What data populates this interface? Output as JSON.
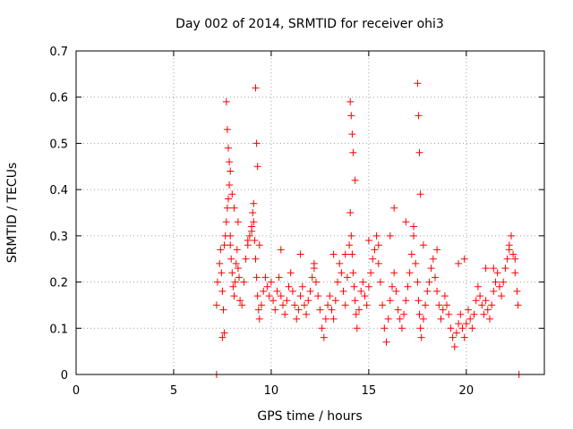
{
  "chart_data": {
    "type": "scatter",
    "title": "Day 002 of 2014, SRMTID for receiver ohi3",
    "xlabel": "GPS time / hours",
    "ylabel": "SRMTID / TECUs",
    "xlim": [
      0,
      24
    ],
    "ylim": [
      0,
      0.7
    ],
    "xticks": [
      0,
      5,
      10,
      15,
      20
    ],
    "yticks": [
      0,
      0.1,
      0.2,
      0.3,
      0.4,
      0.5,
      0.6,
      0.7
    ],
    "xtick_labels": [
      "0",
      "5",
      "10",
      "15",
      "20"
    ],
    "ytick_labels": [
      "0",
      "0.1",
      "0.2",
      "0.3",
      "0.4",
      "0.5",
      "0.6",
      "0.7"
    ],
    "grid": true,
    "marker": "+",
    "series": [
      {
        "name": "SRMTID",
        "color": "#ff0000",
        "x": [
          7.2,
          7.25,
          7.35,
          7.4,
          7.45,
          7.5,
          7.55,
          7.6,
          7.65,
          7.7,
          7.75,
          7.8,
          7.85,
          7.9,
          7.95,
          8.0,
          8.05,
          8.1,
          8.15,
          8.2,
          8.25,
          8.3,
          8.35,
          8.4,
          8.5,
          8.6,
          8.7,
          8.8,
          8.9,
          9.0,
          9.05,
          9.1,
          9.15,
          9.2,
          9.25,
          9.3,
          9.35,
          9.4,
          9.5,
          9.6,
          9.7,
          9.8,
          9.9,
          10.0,
          10.1,
          10.2,
          10.3,
          10.4,
          10.5,
          10.6,
          10.7,
          10.8,
          10.9,
          11.0,
          11.1,
          11.2,
          11.3,
          11.4,
          11.5,
          11.6,
          11.7,
          11.8,
          11.9,
          12.0,
          12.1,
          12.2,
          12.3,
          12.4,
          12.5,
          12.6,
          12.7,
          12.8,
          12.9,
          13.0,
          13.1,
          13.2,
          13.3,
          13.4,
          13.5,
          13.6,
          13.7,
          13.8,
          13.9,
          14.0,
          14.05,
          14.1,
          14.15,
          14.2,
          14.25,
          14.3,
          14.35,
          14.4,
          14.5,
          14.6,
          14.7,
          14.8,
          14.9,
          15.0,
          15.1,
          15.2,
          15.3,
          15.4,
          15.5,
          15.6,
          15.7,
          15.8,
          15.9,
          16.0,
          16.1,
          16.2,
          16.3,
          16.4,
          16.5,
          16.6,
          16.7,
          16.8,
          16.9,
          17.0,
          17.1,
          17.2,
          17.3,
          17.4,
          17.5,
          17.55,
          17.6,
          17.65,
          17.7,
          17.8,
          17.9,
          18.0,
          18.1,
          18.2,
          18.3,
          18.4,
          18.5,
          18.6,
          18.7,
          18.8,
          18.9,
          19.0,
          19.1,
          19.2,
          19.3,
          19.4,
          19.5,
          19.6,
          19.7,
          19.8,
          19.9,
          20.0,
          20.1,
          20.2,
          20.3,
          20.4,
          20.5,
          20.6,
          20.7,
          20.8,
          20.9,
          21.0,
          21.1,
          21.2,
          21.3,
          21.4,
          21.5,
          21.6,
          21.7,
          21.8,
          21.9,
          22.0,
          22.1,
          22.2,
          22.3,
          22.4,
          22.5,
          22.6,
          22.65,
          7.7,
          7.75,
          7.8,
          7.85,
          7.9,
          8.0,
          9.2,
          9.25,
          9.3,
          14.05,
          14.1,
          14.15,
          14.2,
          17.5,
          17.55,
          17.6,
          17.65,
          8.1,
          9.1,
          14.3,
          16.3,
          16.9,
          7.5,
          7.6,
          8.3,
          9.0,
          9.4,
          13.8,
          16.1,
          17.8,
          18.5,
          19.6,
          21.4,
          22.5,
          10.5,
          12.2,
          15.5,
          7.9,
          8.8,
          11.5,
          13.2,
          15.0,
          17.3,
          19.9,
          21.0,
          22.2,
          7.2,
          22.7
        ],
        "y": [
          0.15,
          0.2,
          0.24,
          0.27,
          0.22,
          0.18,
          0.14,
          0.09,
          0.3,
          0.33,
          0.36,
          0.38,
          0.41,
          0.28,
          0.25,
          0.22,
          0.19,
          0.17,
          0.2,
          0.24,
          0.27,
          0.23,
          0.21,
          0.16,
          0.15,
          0.2,
          0.25,
          0.28,
          0.3,
          0.32,
          0.35,
          0.33,
          0.29,
          0.25,
          0.21,
          0.17,
          0.14,
          0.12,
          0.15,
          0.18,
          0.21,
          0.19,
          0.17,
          0.2,
          0.16,
          0.14,
          0.18,
          0.21,
          0.17,
          0.15,
          0.13,
          0.16,
          0.19,
          0.22,
          0.18,
          0.15,
          0.12,
          0.14,
          0.17,
          0.19,
          0.15,
          0.13,
          0.16,
          0.18,
          0.21,
          0.23,
          0.2,
          0.17,
          0.14,
          0.1,
          0.08,
          0.12,
          0.15,
          0.17,
          0.14,
          0.12,
          0.16,
          0.2,
          0.24,
          0.22,
          0.18,
          0.15,
          0.21,
          0.28,
          0.35,
          0.3,
          0.26,
          0.22,
          0.19,
          0.16,
          0.13,
          0.1,
          0.14,
          0.18,
          0.2,
          0.17,
          0.15,
          0.19,
          0.22,
          0.25,
          0.27,
          0.3,
          0.24,
          0.2,
          0.15,
          0.1,
          0.07,
          0.12,
          0.16,
          0.19,
          0.22,
          0.18,
          0.14,
          0.12,
          0.1,
          0.13,
          0.16,
          0.19,
          0.22,
          0.26,
          0.3,
          0.24,
          0.2,
          0.16,
          0.13,
          0.1,
          0.08,
          0.12,
          0.15,
          0.18,
          0.2,
          0.23,
          0.25,
          0.21,
          0.18,
          0.15,
          0.12,
          0.14,
          0.17,
          0.15,
          0.13,
          0.1,
          0.08,
          0.06,
          0.09,
          0.11,
          0.13,
          0.1,
          0.08,
          0.11,
          0.14,
          0.12,
          0.1,
          0.13,
          0.16,
          0.19,
          0.17,
          0.15,
          0.13,
          0.16,
          0.14,
          0.12,
          0.15,
          0.18,
          0.2,
          0.22,
          0.19,
          0.17,
          0.2,
          0.23,
          0.25,
          0.27,
          0.3,
          0.26,
          0.22,
          0.18,
          0.15,
          0.59,
          0.53,
          0.49,
          0.46,
          0.44,
          0.39,
          0.62,
          0.5,
          0.45,
          0.59,
          0.56,
          0.52,
          0.48,
          0.63,
          0.56,
          0.48,
          0.39,
          0.36,
          0.37,
          0.42,
          0.36,
          0.33,
          0.08,
          0.28,
          0.33,
          0.31,
          0.28,
          0.26,
          0.3,
          0.28,
          0.27,
          0.24,
          0.23,
          0.25,
          0.27,
          0.24,
          0.28,
          0.3,
          0.29,
          0.26,
          0.26,
          0.29,
          0.32,
          0.25,
          0.23,
          0.28,
          0.0,
          0.0
        ]
      }
    ]
  }
}
